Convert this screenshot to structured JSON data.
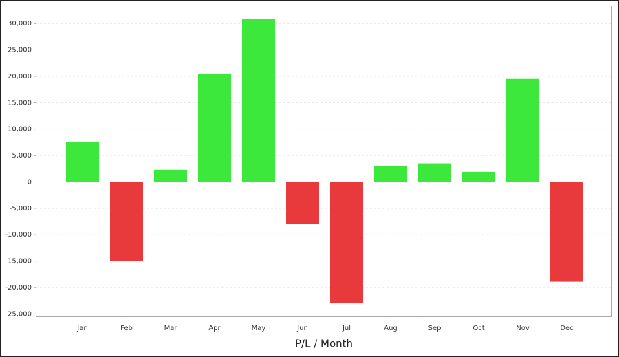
{
  "chart_data": {
    "type": "bar",
    "x_label": "P/L / Month",
    "categories": [
      "Jan",
      "Feb",
      "Mar",
      "Apr",
      "May",
      "Jun",
      "Jul",
      "Aug",
      "Sep",
      "Oct",
      "Nov",
      "Dec"
    ],
    "values": [
      7500,
      -15000,
      2300,
      20500,
      30800,
      -8000,
      -23000,
      3000,
      3500,
      1900,
      19500,
      -18900
    ],
    "positive_color": "#3de83d",
    "negative_color": "#e8393d",
    "ylim": [
      -25600,
      33400
    ],
    "yticks": [
      {
        "value": -25000,
        "label": "-25,000"
      },
      {
        "value": -20000,
        "label": "-20,000"
      },
      {
        "value": -15000,
        "label": "-15,000"
      },
      {
        "value": -10000,
        "label": "-10,000"
      },
      {
        "value": -5000,
        "label": "-5,000"
      },
      0,
      {
        "value": 5000,
        "label": "5,000"
      },
      {
        "value": 10000,
        "label": "10,000"
      },
      {
        "value": 15000,
        "label": "15,000"
      },
      {
        "value": 20000,
        "label": "20,000"
      },
      {
        "value": 25000,
        "label": "25,000"
      },
      {
        "value": 30000,
        "label": "30,000"
      }
    ],
    "grid": true
  }
}
